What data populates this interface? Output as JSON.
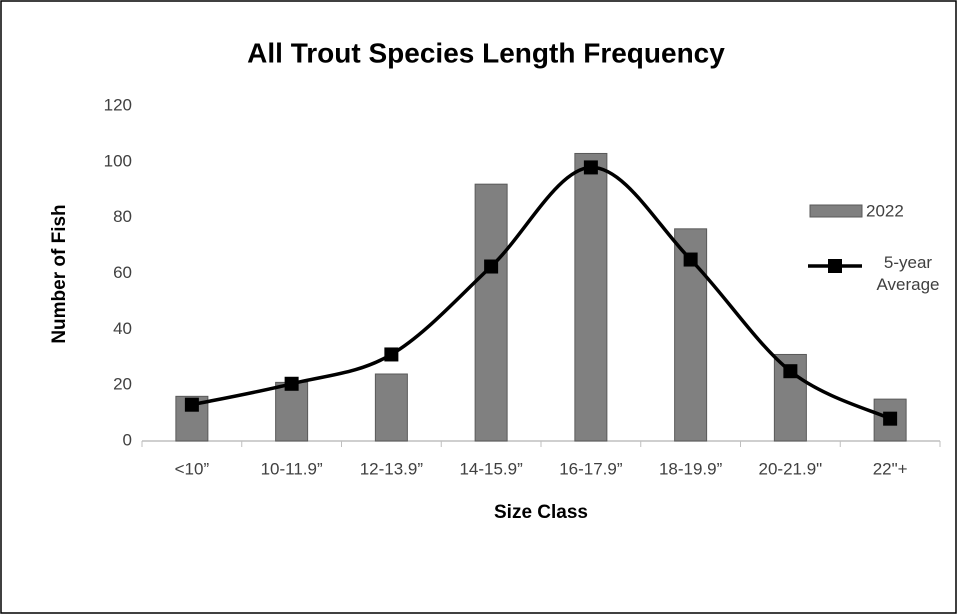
{
  "chart_data": {
    "type": "bar_line",
    "title": "All Trout Species Length Frequency",
    "x_label": "Size Class",
    "y_label": "Number of Fish",
    "categories": [
      "<10”",
      "10-11.9”",
      "12-13.9”",
      "14-15.9”",
      "16-17.9”",
      "18-19.9”",
      "20-21.9\"",
      "22\"+"
    ],
    "series": [
      {
        "name": "2022",
        "type": "bar",
        "color": "#808080",
        "values": [
          16,
          21,
          24,
          92,
          103,
          76,
          31,
          15
        ]
      },
      {
        "name": "5-year Average",
        "type": "line",
        "color": "#000000",
        "smooth": true,
        "values": [
          13,
          20.5,
          31,
          62.5,
          98,
          65,
          25,
          8
        ]
      }
    ],
    "ylim": [
      0,
      120
    ],
    "yticks": [
      0,
      20,
      40,
      60,
      80,
      100,
      120
    ],
    "grid": false,
    "legend": "right"
  }
}
